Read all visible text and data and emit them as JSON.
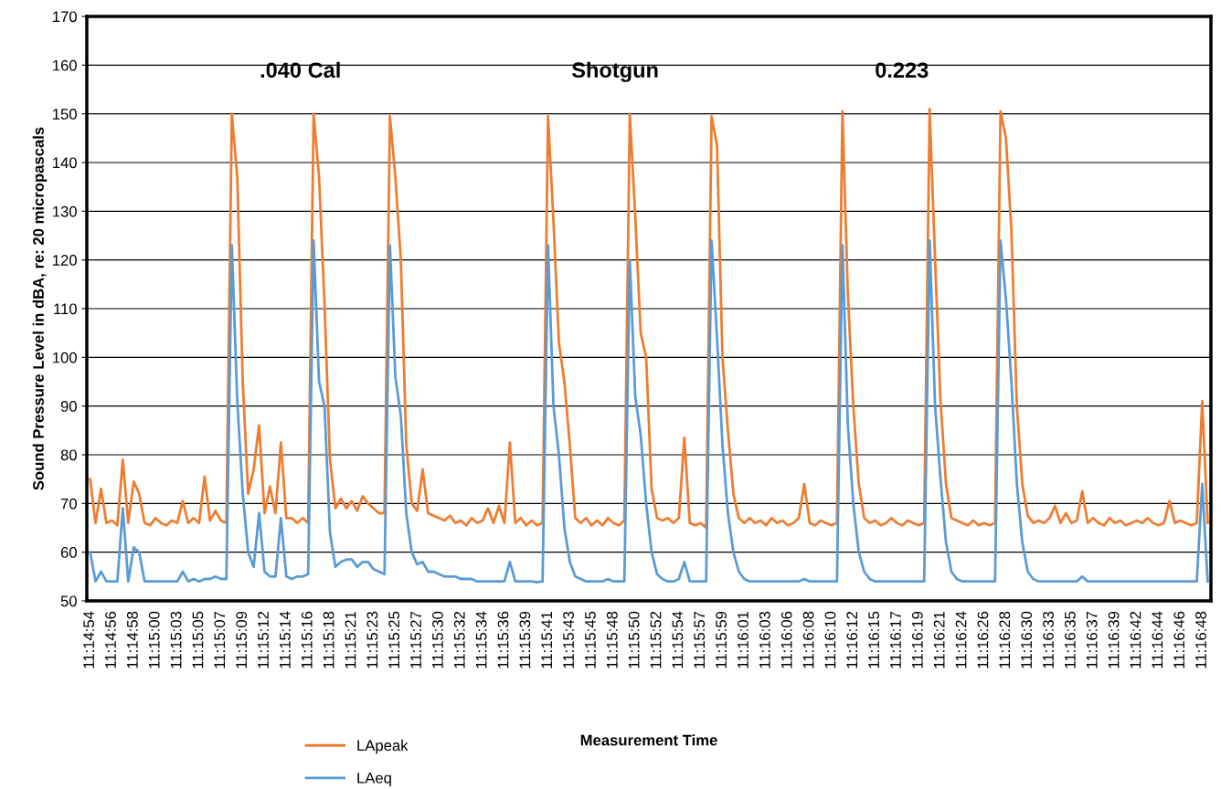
{
  "chart_data": {
    "type": "line",
    "xlabel": "Measurement Time",
    "ylabel": "Sound Pressure Level in dBA, re: 20 micropascals",
    "categories": [
      "11:14:54",
      null,
      null,
      null,
      "11:14:56",
      null,
      null,
      null,
      "11:14:58",
      null,
      null,
      null,
      "11:15:00",
      null,
      null,
      null,
      "11:15:03",
      null,
      null,
      null,
      "11:15:05",
      null,
      null,
      null,
      "11:15:07",
      null,
      null,
      null,
      "11:15:09",
      null,
      null,
      null,
      "11:15:12",
      null,
      null,
      null,
      "11:15:14",
      null,
      null,
      null,
      "11:15:16",
      null,
      null,
      null,
      "11:15:18",
      null,
      null,
      null,
      "11:15:21",
      null,
      null,
      null,
      "11:15:23",
      null,
      null,
      null,
      "11:15:25",
      null,
      null,
      null,
      "11:15:27",
      null,
      null,
      null,
      "11:15:30",
      null,
      null,
      null,
      "11:15:32",
      null,
      null,
      null,
      "11:15:34",
      null,
      null,
      null,
      "11:15:36",
      null,
      null,
      null,
      "11:15:39",
      null,
      null,
      null,
      "11:15:41",
      null,
      null,
      null,
      "11:15:43",
      null,
      null,
      null,
      "11:15:45",
      null,
      null,
      null,
      "11:15:48",
      null,
      null,
      null,
      "11:15:50",
      null,
      null,
      null,
      "11:15:52",
      null,
      null,
      null,
      "11:15:54",
      null,
      null,
      null,
      "11:15:57",
      null,
      null,
      null,
      "11:15:59",
      null,
      null,
      null,
      "11:16:01",
      null,
      null,
      null,
      "11:16:03",
      null,
      null,
      null,
      "11:16:06",
      null,
      null,
      null,
      "11:16:08",
      null,
      null,
      null,
      "11:16:10",
      null,
      null,
      null,
      "11:16:12",
      null,
      null,
      null,
      "11:16:15",
      null,
      null,
      null,
      "11:16:17",
      null,
      null,
      null,
      "11:16:19",
      null,
      null,
      null,
      "11:16:21",
      null,
      null,
      null,
      "11:16:24",
      null,
      null,
      null,
      "11:16:26",
      null,
      null,
      null,
      "11:16:28",
      null,
      null,
      null,
      "11:16:30",
      null,
      null,
      null,
      "11:16:33",
      null,
      null,
      null,
      "11:16:35",
      null,
      null,
      null,
      "11:16:37",
      null,
      null,
      null,
      "11:16:39",
      null,
      null,
      null,
      "11:16:42",
      null,
      null,
      null,
      "11:16:44",
      null,
      null,
      null,
      "11:16:46",
      null,
      null,
      null,
      "11:16:48",
      null
    ],
    "series": [
      {
        "name": "LApeak",
        "color": "#ed7d31",
        "values": [
          75,
          66,
          73,
          66,
          66.5,
          65.5,
          79,
          66,
          74.5,
          72,
          66,
          65.5,
          67,
          66,
          65.5,
          66.5,
          66,
          70.5,
          66,
          67,
          66,
          75.5,
          66.5,
          68.5,
          66.5,
          66,
          150,
          137,
          95,
          72,
          77,
          86,
          68,
          73.5,
          68,
          82.5,
          67,
          67,
          66,
          67,
          66,
          150,
          137,
          111,
          79,
          69,
          71,
          69,
          70.5,
          68.5,
          71.5,
          70,
          69,
          68,
          68,
          149.5,
          137,
          120,
          82,
          70,
          68.5,
          77,
          68,
          67.5,
          67,
          66.5,
          67.5,
          66,
          66.5,
          65.5,
          67,
          66,
          66.5,
          69,
          66,
          69.5,
          66,
          82.5,
          66,
          67,
          65.5,
          66.5,
          65.5,
          66,
          149.5,
          128,
          103,
          95,
          82,
          67,
          66,
          67,
          65.5,
          66.5,
          65.5,
          67,
          66,
          65.5,
          66.5,
          150,
          129,
          105,
          100,
          73,
          67,
          66.5,
          67,
          66,
          67,
          83.5,
          66,
          65.5,
          66,
          65,
          149.5,
          143.5,
          100,
          85,
          72,
          67,
          66,
          67,
          66,
          66.5,
          65.5,
          67,
          66,
          66.5,
          65.5,
          66,
          67,
          74,
          66,
          65.5,
          66.5,
          66,
          65.5,
          66,
          150.5,
          113,
          90,
          74,
          67,
          66,
          66.5,
          65.5,
          66,
          67,
          66,
          65.5,
          66.5,
          66,
          65.5,
          66,
          151,
          120,
          91,
          74,
          67,
          66.5,
          66,
          65.5,
          66.5,
          65.5,
          66,
          65.5,
          66,
          150.5,
          145,
          126,
          90,
          74,
          67.5,
          66,
          66.5,
          66,
          67,
          69.5,
          66,
          68,
          66,
          66.5,
          72.5,
          66,
          67,
          66,
          65.5,
          67,
          66,
          66.5,
          65.5,
          66,
          66.5,
          66,
          67,
          66,
          65.5,
          66,
          70.5,
          66,
          66.5,
          66,
          65.5,
          66,
          91,
          66
        ]
      },
      {
        "name": "LAeq",
        "color": "#5b9bd5",
        "values": [
          60,
          54,
          56,
          54,
          54,
          54,
          69,
          54,
          61,
          60,
          54,
          54,
          54,
          54,
          54,
          54,
          54,
          56,
          54,
          54.5,
          54,
          54.5,
          54.5,
          55,
          54.5,
          54.5,
          123,
          91,
          72,
          60,
          57,
          68,
          56,
          55,
          55,
          67,
          55,
          54.5,
          55,
          55,
          55.5,
          124,
          95,
          90,
          64,
          57,
          58,
          58.5,
          58.5,
          57,
          58,
          58,
          56.5,
          56,
          55.5,
          123,
          96,
          88,
          68,
          60,
          57.5,
          58,
          56,
          56,
          55.5,
          55,
          55,
          55,
          54.5,
          54.5,
          54.5,
          54,
          54,
          54,
          54,
          54,
          54,
          58,
          54,
          54,
          54,
          54,
          53.8,
          54,
          123,
          90,
          80,
          65,
          58,
          55,
          54.5,
          54,
          54,
          54,
          54,
          54.5,
          54,
          54,
          54,
          120,
          92,
          84,
          70,
          60,
          55.5,
          54.5,
          54,
          54,
          54.5,
          58,
          54,
          54,
          54,
          54,
          124,
          104,
          82,
          68,
          60,
          56,
          54.5,
          54,
          54,
          54,
          54,
          54,
          54,
          54,
          54,
          54,
          54,
          54.5,
          54,
          54,
          54,
          54,
          54,
          54,
          123,
          86,
          70,
          60,
          56,
          54.5,
          54,
          54,
          54,
          54,
          54,
          54,
          54,
          54,
          54,
          54,
          124,
          90,
          75,
          62,
          56,
          54.5,
          54,
          54,
          54,
          54,
          54,
          54,
          54,
          124,
          112,
          95,
          74,
          62,
          56,
          54.5,
          54,
          54,
          54,
          54,
          54,
          54,
          54,
          54,
          55,
          54,
          54,
          54,
          54,
          54,
          54,
          54,
          54,
          54,
          54,
          54,
          54,
          54,
          54,
          54,
          54,
          54,
          54,
          54,
          54,
          54,
          74,
          54
        ]
      }
    ],
    "ylim": [
      50,
      170
    ],
    "yticks": [
      50,
      60,
      70,
      80,
      90,
      100,
      110,
      120,
      130,
      140,
      150,
      160,
      170
    ],
    "grid": "y",
    "legend": "bottom",
    "line_style": "solid",
    "marker": "none",
    "annotations": [
      ".040 Cal",
      "Shotgun",
      "0.223"
    ]
  }
}
